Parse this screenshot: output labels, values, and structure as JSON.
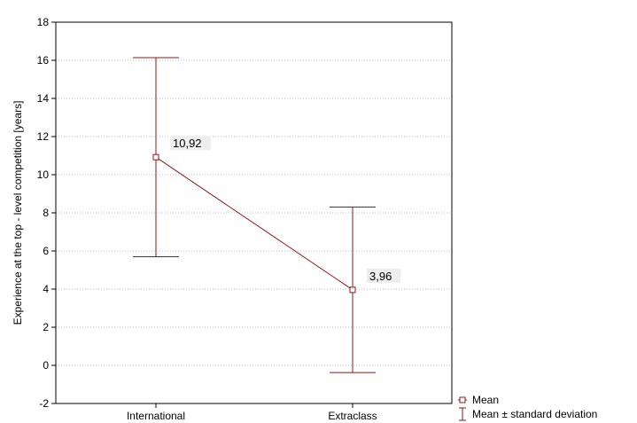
{
  "chart_data": {
    "type": "line",
    "title": "",
    "xlabel": "",
    "ylabel": "Experience at the top - level competition [years]",
    "categories": [
      "International",
      "Extraclass"
    ],
    "series": [
      {
        "name": "Mean",
        "values": [
          10.92,
          3.96
        ],
        "lower": [
          5.7,
          -0.38
        ],
        "upper": [
          16.14,
          8.3
        ],
        "data_labels": [
          "10,92",
          "3,96"
        ]
      }
    ],
    "ylim": [
      -2,
      18
    ],
    "yticks": [
      -2,
      0,
      2,
      4,
      6,
      8,
      10,
      12,
      14,
      16,
      18
    ],
    "ytick_labels": [
      "-2",
      "0",
      "2",
      "4",
      "6",
      "8",
      "10",
      "12",
      "14",
      "16",
      "18"
    ],
    "grid": "horizontal-dotted",
    "legend_position": "bottom-right",
    "legend": [
      {
        "label": "Mean",
        "marker": "square"
      },
      {
        "label": "Mean ± standard deviation",
        "marker": "errorbar"
      }
    ],
    "colors": {
      "series": "#8b1a1a",
      "plot_background": "#ffffff",
      "label_background": "#eeeeee",
      "axis": "#000000",
      "grid": "#aaaaaa"
    }
  }
}
